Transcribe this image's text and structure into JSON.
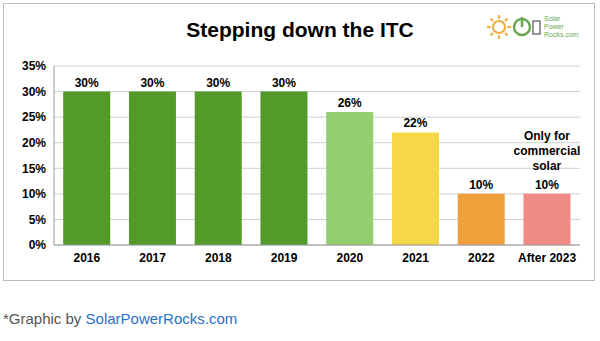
{
  "chart_data": {
    "type": "bar",
    "title": "Stepping down the ITC",
    "categories": [
      "2016",
      "2017",
      "2018",
      "2019",
      "2020",
      "2021",
      "2022",
      "After 2023"
    ],
    "values": [
      30,
      30,
      30,
      30,
      26,
      22,
      10,
      10
    ],
    "value_labels": [
      "30%",
      "30%",
      "30%",
      "30%",
      "26%",
      "22%",
      "10%",
      "10%"
    ],
    "colors": [
      "#529b2a",
      "#529b2a",
      "#529b2a",
      "#529b2a",
      "#93cf6e",
      "#f6d748",
      "#f0a03a",
      "#f08a84"
    ],
    "ylim": [
      0,
      35
    ],
    "yticks": [
      {
        "value": 0,
        "label": "0%"
      },
      {
        "value": 5,
        "label": "5%"
      },
      {
        "value": 10,
        "label": "10%"
      },
      {
        "value": 15,
        "label": "15%"
      },
      {
        "value": 20,
        "label": "20%"
      },
      {
        "value": 25,
        "label": "25%"
      },
      {
        "value": 30,
        "label": "30%"
      },
      {
        "value": 35,
        "label": "35%"
      }
    ],
    "grid": true,
    "data_labels": true,
    "annotations": [
      {
        "text": "Only for commercial solar",
        "category": "After 2023"
      }
    ],
    "logo_text": "Solar Power Rocks.com",
    "caption": {
      "prefix": "*Graphic by",
      "link": "SolarPowerRocks.com"
    }
  }
}
